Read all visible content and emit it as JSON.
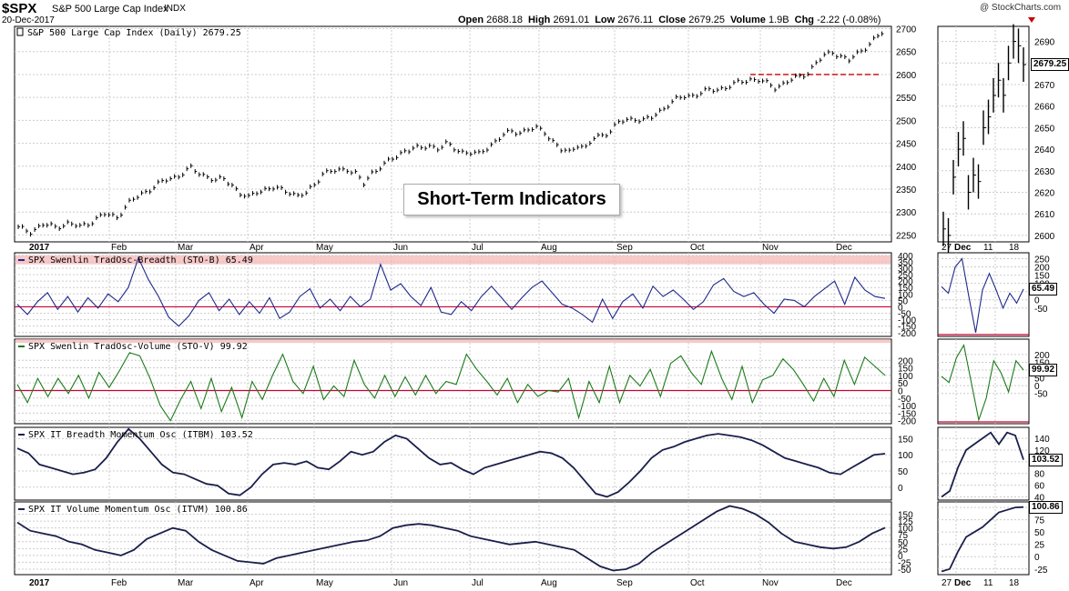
{
  "header": {
    "symbol": "$SPX",
    "fullname": "S&P 500 Large Cap Index",
    "exchange": "INDX",
    "date": "20-Dec-2017",
    "brand": "@ StockCharts.com",
    "quote": [
      {
        "label": "Open",
        "value": "2688.18"
      },
      {
        "label": "High",
        "value": "2691.01"
      },
      {
        "label": "Low",
        "value": "2676.11"
      },
      {
        "label": "Close",
        "value": "2679.25"
      },
      {
        "label": "Volume",
        "value": "1.9B"
      },
      {
        "label": "Chg",
        "value": "-2.22 (-0.08%)"
      }
    ]
  },
  "overlay_title": "Short-Term Indicators",
  "colors": {
    "price": "#000000",
    "stob": "#1f2a8a",
    "stov": "#1a7a1a",
    "itm": "#1a1f4a",
    "zero": "#cc0033",
    "band": "#f4b3b3",
    "support": "#cc0000"
  },
  "chart_data": [
    {
      "type": "line",
      "panel": "price-daily",
      "title": "S&P 500 Large Cap Index (Daily) 2679.25",
      "ylim": [
        2235,
        2705
      ],
      "yticks": [
        2250,
        2300,
        2350,
        2400,
        2450,
        2500,
        2550,
        2600,
        2650,
        2700
      ],
      "x_months": [
        "2017",
        "Feb",
        "Mar",
        "Apr",
        "May",
        "Jun",
        "Jul",
        "Aug",
        "Sep",
        "Oct",
        "Nov",
        "Dec"
      ],
      "support_level": 2600,
      "series": [
        {
          "name": "S&P 500 Large Cap Index (Daily)",
          "points": [
            [
              0,
              2265
            ],
            [
              3,
              2258
            ],
            [
              6,
              2272
            ],
            [
              9,
              2268
            ],
            [
              12,
              2275
            ],
            [
              15,
              2268
            ],
            [
              18,
              2280
            ],
            [
              21,
              2295
            ],
            [
              24,
              2290
            ],
            [
              27,
              2320
            ],
            [
              30,
              2340
            ],
            [
              33,
              2355
            ],
            [
              36,
              2370
            ],
            [
              39,
              2380
            ],
            [
              42,
              2395
            ],
            [
              44,
              2385
            ],
            [
              46,
              2378
            ],
            [
              48,
              2368
            ],
            [
              50,
              2372
            ],
            [
              52,
              2360
            ],
            [
              54,
              2340
            ],
            [
              56,
              2330
            ],
            [
              58,
              2345
            ],
            [
              60,
              2350
            ],
            [
              62,
              2352
            ],
            [
              64,
              2348
            ],
            [
              66,
              2345
            ],
            [
              68,
              2335
            ],
            [
              70,
              2340
            ],
            [
              72,
              2360
            ],
            [
              74,
              2385
            ],
            [
              76,
              2388
            ],
            [
              78,
              2390
            ],
            [
              80,
              2395
            ],
            [
              82,
              2385
            ],
            [
              84,
              2360
            ],
            [
              86,
              2385
            ],
            [
              88,
              2400
            ],
            [
              90,
              2410
            ],
            [
              92,
              2420
            ],
            [
              94,
              2435
            ],
            [
              96,
              2440
            ],
            [
              98,
              2438
            ],
            [
              100,
              2445
            ],
            [
              102,
              2440
            ],
            [
              104,
              2448
            ],
            [
              106,
              2438
            ],
            [
              108,
              2432
            ],
            [
              110,
              2430
            ],
            [
              112,
              2425
            ],
            [
              114,
              2440
            ],
            [
              116,
              2455
            ],
            [
              118,
              2468
            ],
            [
              120,
              2475
            ],
            [
              122,
              2475
            ],
            [
              124,
              2480
            ],
            [
              126,
              2482
            ],
            [
              128,
              2475
            ],
            [
              130,
              2455
            ],
            [
              132,
              2435
            ],
            [
              134,
              2430
            ],
            [
              136,
              2448
            ],
            [
              138,
              2440
            ],
            [
              140,
              2460
            ],
            [
              142,
              2468
            ],
            [
              144,
              2478
            ],
            [
              146,
              2495
            ],
            [
              148,
              2500
            ],
            [
              150,
              2505
            ],
            [
              152,
              2500
            ],
            [
              154,
              2505
            ],
            [
              156,
              2520
            ],
            [
              158,
              2535
            ],
            [
              160,
              2545
            ],
            [
              162,
              2552
            ],
            [
              164,
              2555
            ],
            [
              166,
              2560
            ],
            [
              168,
              2565
            ],
            [
              170,
              2568
            ],
            [
              172,
              2572
            ],
            [
              174,
              2578
            ],
            [
              176,
              2585
            ],
            [
              178,
              2590
            ],
            [
              180,
              2588
            ],
            [
              182,
              2580
            ],
            [
              184,
              2572
            ],
            [
              186,
              2580
            ],
            [
              188,
              2588
            ],
            [
              190,
              2595
            ],
            [
              192,
              2605
            ],
            [
              194,
              2625
            ],
            [
              196,
              2640
            ],
            [
              198,
              2650
            ],
            [
              200,
              2640
            ],
            [
              202,
              2630
            ],
            [
              204,
              2645
            ],
            [
              206,
              2660
            ],
            [
              208,
              2675
            ],
            [
              210,
              2690
            ],
            [
              211,
              2679.25
            ]
          ]
        }
      ],
      "last_value_label": "2679.25"
    },
    {
      "type": "line",
      "panel": "price-zoom",
      "ylim": [
        2597,
        2697
      ],
      "yticks": [
        2600,
        2610,
        2620,
        2630,
        2640,
        2650,
        2660,
        2670,
        2680,
        2690
      ],
      "x_ticks": [
        "27",
        "Dec",
        "11",
        "18"
      ],
      "series": [
        {
          "name": "S&P 500 Large Cap Index (Daily)",
          "points": [
            [
              0,
              2603
            ],
            [
              1,
              2600
            ],
            [
              2,
              2627
            ],
            [
              3,
              2640
            ],
            [
              4,
              2645
            ],
            [
              5,
              2620
            ],
            [
              6,
              2628
            ],
            [
              7,
              2625
            ],
            [
              8,
              2650
            ],
            [
              9,
              2655
            ],
            [
              10,
              2665
            ],
            [
              11,
              2672
            ],
            [
              12,
              2665
            ],
            [
              13,
              2680
            ],
            [
              14,
              2690
            ],
            [
              15,
              2688
            ],
            [
              16,
              2679.25
            ]
          ]
        }
      ],
      "last_value_label": "2679.25"
    },
    {
      "type": "line",
      "panel": "stob",
      "title": "SPX Swenlin TradOsc-Breadth (STO-B) 65.49",
      "ylim": [
        -230,
        420
      ],
      "yticks": [
        -200,
        -150,
        -100,
        -50,
        0,
        50,
        100,
        150,
        200,
        250,
        300,
        350,
        400
      ],
      "zoom_yticks": [
        -50,
        0,
        50,
        100,
        150,
        200,
        250
      ],
      "band": [
        330,
        400
      ],
      "series": [
        {
          "name": "STO-B",
          "values": [
            20,
            -60,
            40,
            110,
            -20,
            80,
            -40,
            70,
            -10,
            100,
            40,
            150,
            380,
            210,
            80,
            -80,
            -150,
            -70,
            50,
            110,
            -30,
            60,
            -60,
            40,
            -50,
            70,
            -90,
            -40,
            80,
            140,
            -10,
            60,
            -30,
            80,
            0,
            60,
            330,
            130,
            180,
            80,
            10,
            150,
            -40,
            -60,
            40,
            -30,
            80,
            160,
            70,
            -20,
            70,
            150,
            200,
            110,
            20,
            -10,
            -60,
            -120,
            60,
            -90,
            40,
            100,
            -10,
            160,
            80,
            130,
            60,
            -20,
            40,
            170,
            220,
            120,
            80,
            110,
            20,
            -50,
            60,
            50,
            0,
            80,
            140,
            200,
            20,
            230,
            130,
            80,
            65.49
          ]
        }
      ],
      "zoom_values": [
        80,
        40,
        200,
        250,
        20,
        -200,
        60,
        160,
        60,
        -50,
        40,
        -20,
        65.49
      ],
      "last_value_label": "65.49"
    },
    {
      "type": "line",
      "panel": "stov",
      "title": "SPX Swenlin TradOsc-Volume (STO-V) 99.92",
      "ylim": [
        -220,
        340
      ],
      "yticks": [
        -200,
        -150,
        -100,
        -50,
        0,
        50,
        100,
        150,
        200
      ],
      "zoom_yticks": [
        -50,
        0,
        50,
        100,
        150,
        200
      ],
      "band": [
        315,
        340
      ],
      "series": [
        {
          "name": "STO-V",
          "values": [
            40,
            -80,
            80,
            -40,
            80,
            -20,
            100,
            -50,
            120,
            20,
            130,
            250,
            230,
            80,
            -100,
            -200,
            -60,
            60,
            -120,
            80,
            -140,
            20,
            -180,
            60,
            -60,
            100,
            240,
            60,
            -20,
            160,
            -60,
            30,
            -40,
            200,
            40,
            -50,
            100,
            -40,
            90,
            -30,
            100,
            -20,
            60,
            40,
            240,
            140,
            60,
            -30,
            80,
            -80,
            40,
            -40,
            0,
            -10,
            80,
            -180,
            60,
            -80,
            160,
            -80,
            100,
            30,
            140,
            -40,
            180,
            230,
            120,
            40,
            260,
            80,
            -60,
            160,
            -80,
            70,
            100,
            210,
            140,
            40,
            -70,
            80,
            -40,
            200,
            40,
            220,
            160,
            99.92
          ]
        }
      ],
      "zoom_values": [
        60,
        20,
        180,
        260,
        20,
        -220,
        -80,
        160,
        80,
        -40,
        160,
        99.92
      ],
      "last_value_label": "99.92"
    },
    {
      "type": "line",
      "panel": "itbm",
      "title": "SPX IT Breadth Momentum Osc (ITBM) 103.52",
      "ylim": [
        -40,
        185
      ],
      "yticks": [
        0,
        50,
        100,
        150
      ],
      "zoom_yticks": [
        40,
        60,
        80,
        100,
        120,
        140
      ],
      "series": [
        {
          "name": "ITBM",
          "values": [
            120,
            105,
            70,
            60,
            50,
            40,
            45,
            55,
            90,
            140,
            180,
            150,
            110,
            70,
            45,
            40,
            25,
            10,
            5,
            -20,
            -25,
            0,
            40,
            70,
            75,
            70,
            80,
            60,
            55,
            80,
            110,
            100,
            110,
            140,
            160,
            150,
            120,
            90,
            70,
            75,
            55,
            40,
            60,
            70,
            80,
            90,
            100,
            110,
            105,
            90,
            60,
            20,
            -20,
            -30,
            -15,
            15,
            50,
            90,
            115,
            125,
            140,
            150,
            160,
            165,
            160,
            155,
            145,
            130,
            110,
            90,
            80,
            70,
            60,
            45,
            40,
            60,
            80,
            100,
            103.52
          ]
        }
      ],
      "zoom_values": [
        40,
        50,
        90,
        120,
        130,
        140,
        150,
        130,
        150,
        145,
        103.52
      ],
      "last_value_label": "103.52"
    },
    {
      "type": "line",
      "panel": "itvm",
      "title": "SPX IT Volume Momentum Osc (ITVM) 100.86",
      "ylim": [
        -70,
        195
      ],
      "yticks": [
        -50,
        -25,
        0,
        25,
        50,
        75,
        100,
        125,
        150
      ],
      "zoom_yticks": [
        -25,
        0,
        25,
        50,
        75,
        100
      ],
      "series": [
        {
          "name": "ITVM",
          "values": [
            120,
            90,
            80,
            70,
            50,
            40,
            20,
            10,
            0,
            20,
            60,
            80,
            100,
            90,
            50,
            20,
            0,
            -20,
            -25,
            -30,
            -10,
            0,
            10,
            20,
            30,
            40,
            50,
            55,
            70,
            100,
            110,
            115,
            110,
            100,
            90,
            70,
            60,
            50,
            40,
            45,
            50,
            40,
            30,
            20,
            -10,
            -40,
            -55,
            -50,
            -30,
            10,
            40,
            70,
            100,
            130,
            160,
            180,
            170,
            150,
            120,
            80,
            50,
            40,
            30,
            25,
            30,
            50,
            80,
            100.86
          ]
        }
      ],
      "zoom_values": [
        -30,
        -25,
        10,
        40,
        50,
        60,
        75,
        90,
        95,
        100,
        100.86
      ],
      "last_value_label": "100.86"
    }
  ]
}
